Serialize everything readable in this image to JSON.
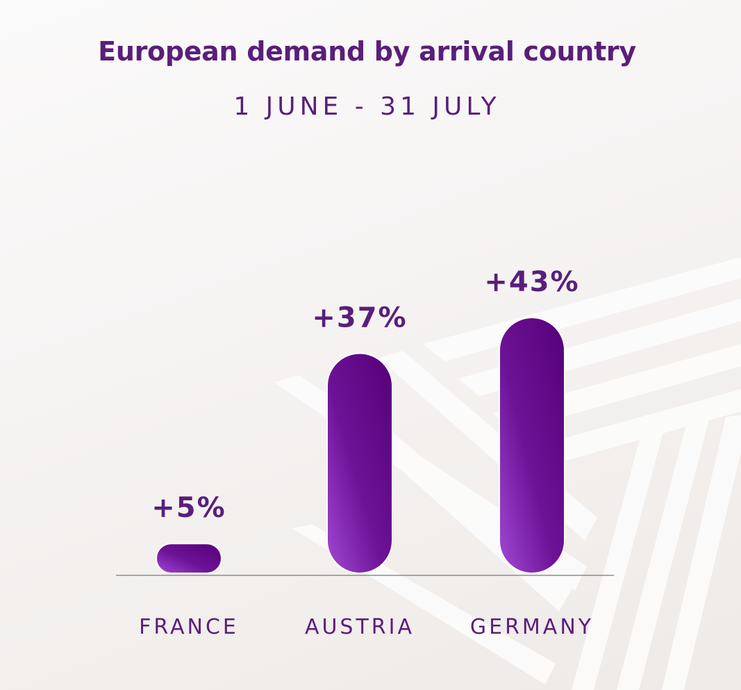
{
  "title": "European demand by arrival country",
  "subtitle": "1 JUNE - 31 JULY",
  "colors": {
    "text": "#5a1e7a",
    "bar_dark": "#560078",
    "bar_light": "#a24ad6",
    "baseline": "#8c8c8c"
  },
  "chart_data": {
    "type": "bar",
    "title": "European demand by arrival country",
    "subtitle": "1 JUNE - 31 JULY",
    "categories": [
      "FRANCE",
      "AUSTRIA",
      "GERMANY"
    ],
    "values": [
      5,
      37,
      43
    ],
    "data_labels": [
      "+5%",
      "+37%",
      "+43%"
    ],
    "unit": "%",
    "ylim": [
      0,
      43
    ],
    "grid": false,
    "legend": "none"
  }
}
